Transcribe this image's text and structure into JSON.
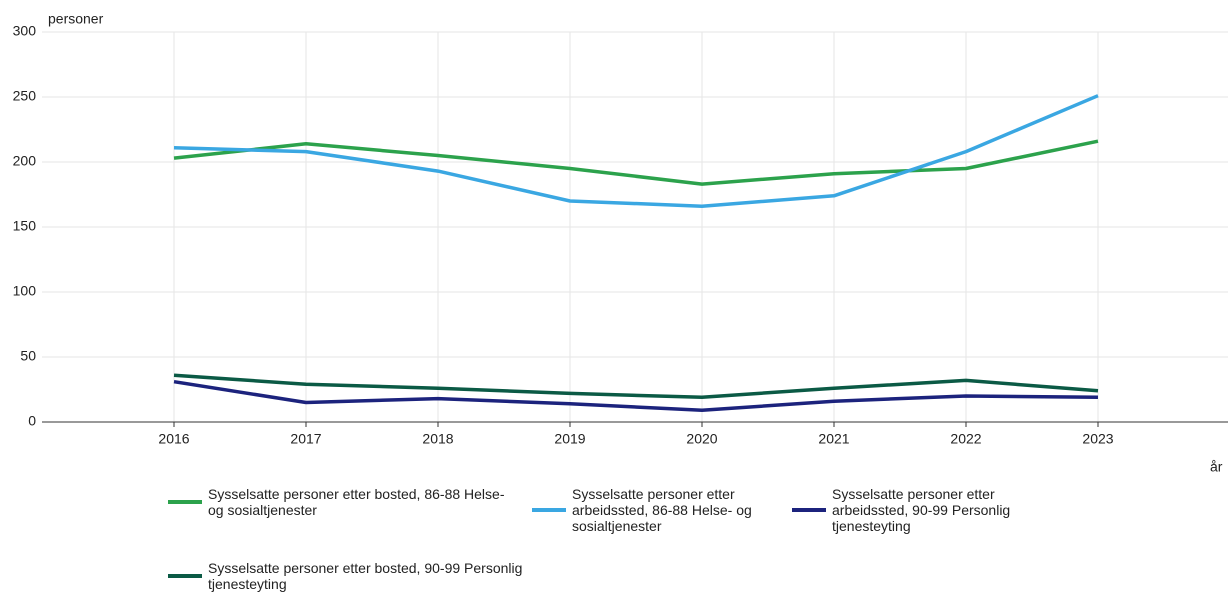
{
  "chart_data": {
    "type": "line",
    "y_label": "personer",
    "x_label": "år",
    "x": [
      2016,
      2017,
      2018,
      2019,
      2020,
      2021,
      2022,
      2023
    ],
    "xlim": [
      2015,
      2024
    ],
    "xticks": [
      2016,
      2017,
      2018,
      2019,
      2020,
      2021,
      2022,
      2023
    ],
    "ylim": [
      0,
      300
    ],
    "yticks": [
      0,
      50,
      100,
      150,
      200,
      250,
      300
    ],
    "grid": true,
    "series": [
      {
        "name": "Sysselsatte personer etter bosted, 86-88 Helse- og sosialtjenester",
        "color": "#2ca24c",
        "values": [
          203,
          214,
          205,
          195,
          183,
          191,
          195,
          216
        ]
      },
      {
        "name": "Sysselsatte personer etter arbeidssted, 86-88 Helse- og sosialtjenester",
        "color": "#3aa7e2",
        "values": [
          211,
          208,
          193,
          170,
          166,
          174,
          208,
          251
        ]
      },
      {
        "name": "Sysselsatte personer etter arbeidssted, 90-99 Personlig tjenesteyting",
        "color": "#1c237d",
        "values": [
          31,
          15,
          18,
          14,
          9,
          16,
          20,
          19
        ]
      },
      {
        "name": "Sysselsatte personer etter bosted, 90-99 Personlig tjenesteyting",
        "color": "#0b5a45",
        "values": [
          36,
          29,
          26,
          22,
          19,
          26,
          32,
          24
        ]
      }
    ]
  }
}
